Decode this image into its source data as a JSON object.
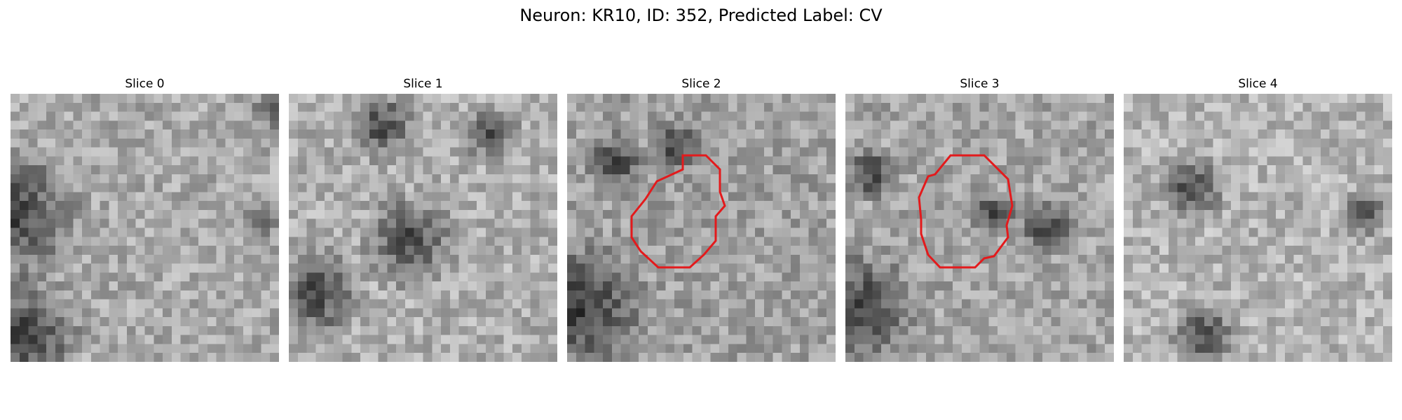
{
  "figure": {
    "title": "Neuron: KR10, ID: 352, Predicted Label: CV"
  },
  "panels": [
    {
      "title": "Slice 0",
      "has_contour": false,
      "mean_gray": 170,
      "dark_blobs": [
        [
          0.0,
          0.45,
          0.3
        ],
        [
          0.05,
          0.9,
          0.25
        ],
        [
          0.93,
          0.48,
          0.08
        ],
        [
          0.98,
          0.06,
          0.08
        ]
      ]
    },
    {
      "title": "Slice 1",
      "has_contour": true,
      "contour_visible": false,
      "mean_gray": 175,
      "dark_blobs": [
        [
          0.35,
          0.12,
          0.15
        ],
        [
          0.45,
          0.55,
          0.2
        ],
        [
          0.1,
          0.75,
          0.2
        ],
        [
          0.75,
          0.15,
          0.12
        ]
      ]
    },
    {
      "title": "Slice 2",
      "has_contour": true,
      "mean_gray": 160,
      "dark_blobs": [
        [
          0.05,
          0.8,
          0.28
        ],
        [
          0.18,
          0.25,
          0.12
        ],
        [
          0.4,
          0.2,
          0.12
        ]
      ]
    },
    {
      "title": "Slice 3",
      "has_contour": true,
      "mean_gray": 165,
      "dark_blobs": [
        [
          0.05,
          0.8,
          0.25
        ],
        [
          0.75,
          0.5,
          0.12
        ],
        [
          0.1,
          0.3,
          0.12
        ],
        [
          0.55,
          0.45,
          0.1
        ]
      ]
    },
    {
      "title": "Slice 4",
      "has_contour": false,
      "mean_gray": 180,
      "dark_blobs": [
        [
          0.25,
          0.35,
          0.15
        ],
        [
          0.9,
          0.45,
          0.1
        ],
        [
          0.3,
          0.9,
          0.15
        ]
      ]
    }
  ],
  "contour": {
    "color": "#e31a1c",
    "label": "segmented cell outline"
  }
}
